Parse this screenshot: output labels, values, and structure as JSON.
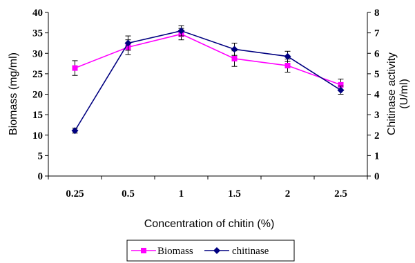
{
  "chart_data": {
    "type": "line",
    "x_label": "Concentration of chitin (%)",
    "y_left_label": "Biomass (mg/ml)",
    "y_right_label_line1": "Chitinase activity",
    "y_right_label_line2": "(U/ml)",
    "categories": [
      "0.25",
      "0.5",
      "1",
      "1.5",
      "2",
      "2.5"
    ],
    "y_left_range": [
      0,
      40
    ],
    "y_left_ticks": [
      "0",
      "5",
      "10",
      "15",
      "20",
      "25",
      "30",
      "35",
      "40"
    ],
    "y_right_range": [
      0,
      8
    ],
    "y_right_ticks": [
      "0",
      "1",
      "2",
      "3",
      "4",
      "5",
      "6",
      "7",
      "8"
    ],
    "grid": false,
    "legend_position": "bottom-center",
    "series": [
      {
        "name": "Biomass",
        "axis": "left",
        "color": "#ff00ff",
        "marker": "square",
        "values": [
          26.4,
          31.5,
          34.7,
          28.7,
          27.0,
          22.3
        ],
        "errors": [
          1.8,
          1.8,
          1.4,
          1.9,
          1.6,
          1.4
        ]
      },
      {
        "name": "chitinase",
        "axis": "right",
        "color": "#000080",
        "marker": "diamond",
        "values": [
          2.22,
          6.5,
          7.1,
          6.2,
          5.85,
          4.2
        ],
        "errors": [
          0.12,
          0.35,
          0.25,
          0.3,
          0.25,
          0.2
        ]
      }
    ]
  }
}
